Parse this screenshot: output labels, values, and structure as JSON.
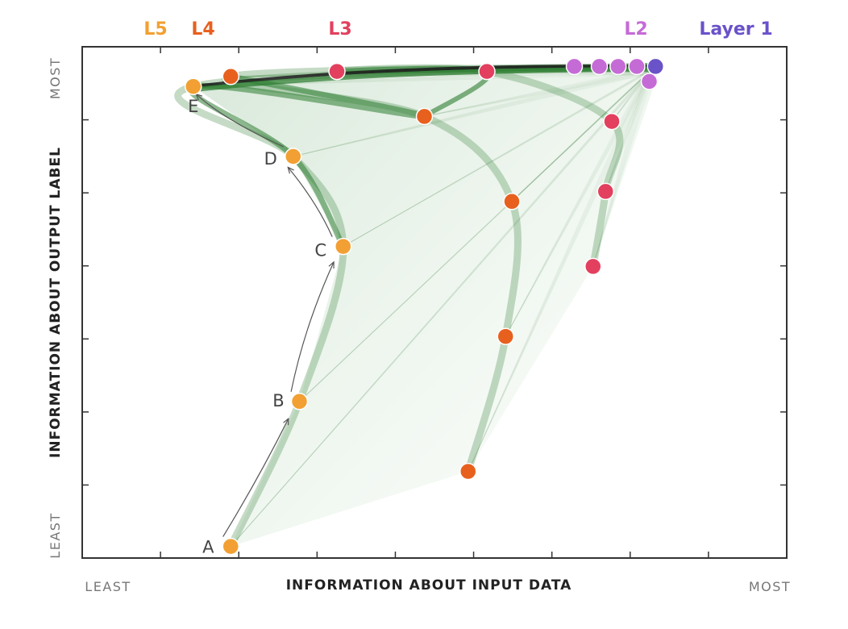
{
  "colors": {
    "L5": "#F2A033",
    "L4": "#E8601E",
    "L3": "#E2405E",
    "L2": "#C56BD6",
    "Layer 1": "#6A52C9",
    "trajectory": "#2E7D32",
    "axis_text": "#777777"
  },
  "chart_data": {
    "type": "scatter",
    "title": "",
    "xlabel": "INFORMATION ABOUT INPUT DATA",
    "ylabel": "INFORMATION ABOUT OUTPUT LABEL",
    "x_tick_labels": {
      "min": "LEAST",
      "max": "MOST"
    },
    "y_tick_labels": {
      "min": "LEAST",
      "max": "MOST"
    },
    "xlim": [
      0,
      1
    ],
    "ylim": [
      0,
      1
    ],
    "grid": false,
    "legend": [
      "L5",
      "L4",
      "L3",
      "L2",
      "Layer 1"
    ],
    "legend_placement": "top",
    "series": [
      {
        "name": "L5",
        "points": [
          {
            "x": 0.15,
            "y": 0.02,
            "label": "A"
          },
          {
            "x": 0.26,
            "y": 0.31,
            "label": "B"
          },
          {
            "x": 0.33,
            "y": 0.62,
            "label": "C"
          },
          {
            "x": 0.25,
            "y": 0.8,
            "label": "D"
          },
          {
            "x": 0.09,
            "y": 0.94,
            "label": "E"
          }
        ]
      },
      {
        "name": "L4",
        "points": [
          {
            "x": 0.53,
            "y": 0.17
          },
          {
            "x": 0.59,
            "y": 0.44
          },
          {
            "x": 0.6,
            "y": 0.71
          },
          {
            "x": 0.46,
            "y": 0.88
          },
          {
            "x": 0.15,
            "y": 0.96
          }
        ]
      },
      {
        "name": "L3",
        "points": [
          {
            "x": 0.73,
            "y": 0.58
          },
          {
            "x": 0.75,
            "y": 0.73
          },
          {
            "x": 0.76,
            "y": 0.87
          },
          {
            "x": 0.56,
            "y": 0.97
          },
          {
            "x": 0.32,
            "y": 0.97
          }
        ]
      },
      {
        "name": "L2",
        "points": [
          {
            "x": 0.82,
            "y": 0.95
          },
          {
            "x": 0.8,
            "y": 0.98
          },
          {
            "x": 0.77,
            "y": 0.98
          },
          {
            "x": 0.74,
            "y": 0.98
          },
          {
            "x": 0.7,
            "y": 0.98
          }
        ]
      },
      {
        "name": "Layer 1",
        "points": [
          {
            "x": 0.83,
            "y": 0.98
          }
        ]
      }
    ]
  }
}
